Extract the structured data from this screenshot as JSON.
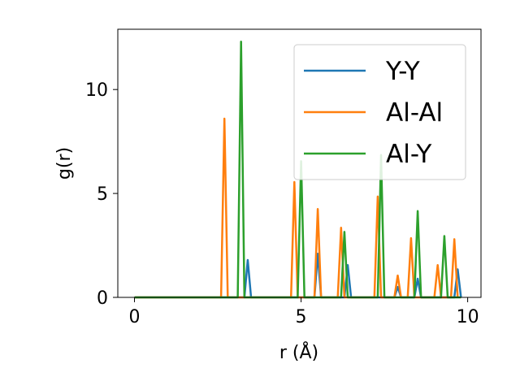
{
  "chart_data": {
    "type": "line",
    "title": "",
    "xlabel": "r (Å)",
    "ylabel": "g(r)",
    "xlim": [
      -0.5,
      10.4
    ],
    "ylim": [
      0,
      12.9
    ],
    "xticks": [
      0,
      5,
      10
    ],
    "xtick_labels": [
      "0",
      "5",
      "10"
    ],
    "yticks": [
      0,
      5,
      10
    ],
    "ytick_labels": [
      "0",
      "5",
      "10"
    ],
    "grid": false,
    "legend_position": "top-right",
    "series": [
      {
        "name": "Y-Y",
        "color": "#1f77b4",
        "x": [
          0,
          3.3,
          3.4,
          3.5,
          5.4,
          5.5,
          5.6,
          6.3,
          6.4,
          6.5,
          7.8,
          7.9,
          8.0,
          8.4,
          8.5,
          8.6,
          9.6,
          9.7,
          9.8
        ],
        "y": [
          0,
          0,
          1.8,
          0,
          0,
          2.1,
          0,
          0,
          1.55,
          0,
          0,
          0.5,
          0,
          0,
          0.9,
          0,
          0,
          1.35,
          0
        ]
      },
      {
        "name": "Al-Al",
        "color": "#ff7f0e",
        "x": [
          0,
          2.6,
          2.7,
          2.8,
          4.7,
          4.8,
          4.9,
          5.4,
          5.5,
          5.6,
          6.1,
          6.2,
          6.3,
          7.2,
          7.3,
          7.4,
          7.8,
          7.9,
          8.0,
          8.2,
          8.3,
          8.4,
          9.0,
          9.1,
          9.2,
          9.5,
          9.6,
          9.7
        ],
        "y": [
          0,
          0,
          8.6,
          0,
          0,
          5.55,
          0,
          0,
          4.25,
          0,
          0,
          3.35,
          0,
          0,
          4.85,
          0,
          0,
          1.05,
          0,
          0,
          2.85,
          0,
          0,
          1.55,
          0,
          0,
          2.8,
          0
        ]
      },
      {
        "name": "Al-Y",
        "color": "#2ca02c",
        "x": [
          0,
          3.1,
          3.2,
          3.3,
          4.9,
          5.0,
          5.1,
          6.2,
          6.3,
          6.4,
          7.3,
          7.4,
          7.5,
          8.4,
          8.5,
          8.6,
          9.2,
          9.3,
          9.4,
          9.8
        ],
        "y": [
          0,
          0,
          12.3,
          0,
          0,
          6.55,
          0,
          0,
          3.15,
          0,
          0,
          6.85,
          0,
          0,
          4.15,
          0,
          0,
          2.95,
          0,
          0
        ]
      }
    ]
  }
}
